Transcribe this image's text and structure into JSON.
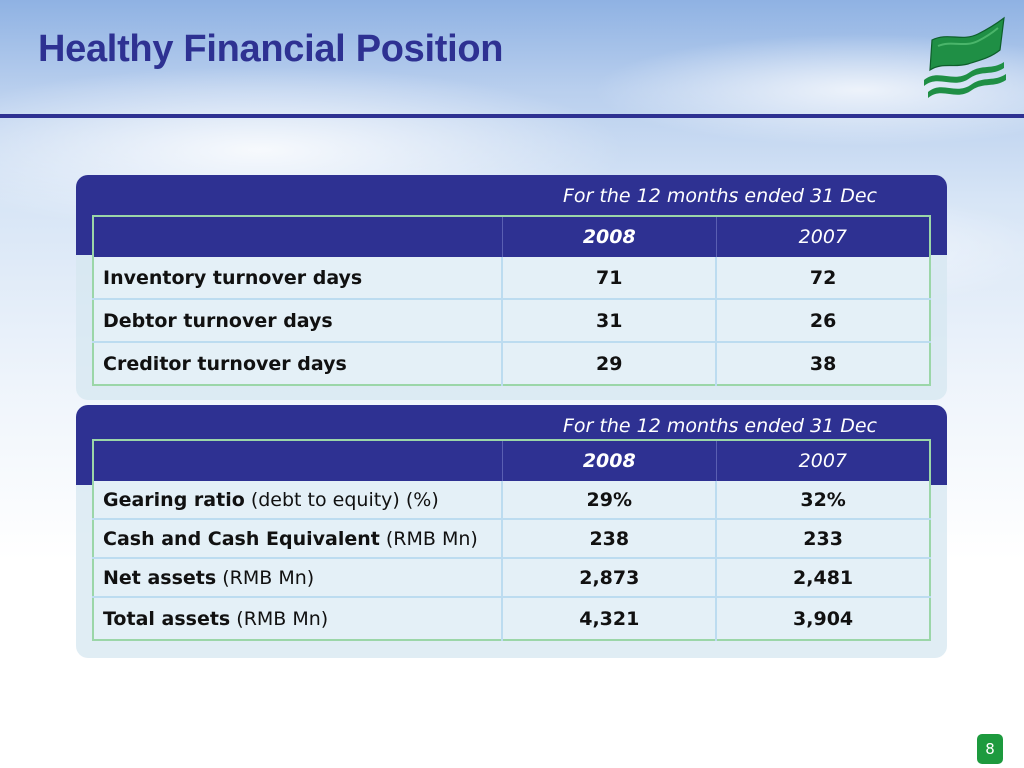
{
  "slide": {
    "title": "Healthy Financial Position",
    "page_number": "8",
    "logo_icon": "green-flag-waves-logo",
    "colors": {
      "title": "#2e3192",
      "header_band": "#2e3192",
      "table_border": "#9bd6a8",
      "page_badge": "#1d9a3e"
    }
  },
  "turnover_table": {
    "period_caption": "For the 12 months ended 31 Dec",
    "years": [
      "2008",
      "2007"
    ],
    "rows": [
      {
        "name": "Inventory turnover days",
        "unit": "",
        "y2008": "71",
        "y2007": "72"
      },
      {
        "name": "Debtor turnover days",
        "unit": "",
        "y2008": "31",
        "y2007": "26"
      },
      {
        "name": "Creditor turnover days",
        "unit": "",
        "y2008": "29",
        "y2007": "38"
      }
    ]
  },
  "balance_table": {
    "period_caption": "For the 12 months ended 31 Dec",
    "years": [
      "2008",
      "2007"
    ],
    "rows": [
      {
        "name": "Gearing ratio",
        "unit": " (debt to equity) (%)",
        "y2008": "29%",
        "y2007": "32%"
      },
      {
        "name": "Cash and Cash Equivalent",
        "unit": " (RMB Mn)",
        "y2008": "238",
        "y2007": "233"
      },
      {
        "name": "Net assets",
        "unit": " (RMB Mn)",
        "y2008": "2,873",
        "y2007": "2,481"
      },
      {
        "name": "Total assets",
        "unit": " (RMB Mn)",
        "y2008": "4,321",
        "y2007": "3,904"
      }
    ]
  }
}
